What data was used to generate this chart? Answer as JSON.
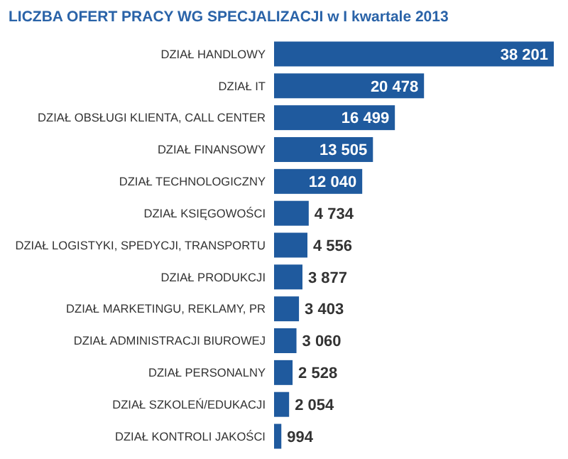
{
  "chart_data": {
    "type": "bar",
    "orientation": "horizontal",
    "title": "LICZBA OFERT PRACY WG SPECJALIZACJI w I kwartale 2013",
    "categories": [
      "DZIAŁ HANDLOWY",
      "DZIAŁ IT",
      "DZIAŁ OBSŁUGI KLIENTA, CALL CENTER",
      "DZIAŁ FINANSOWY",
      "DZIAŁ TECHNOLOGICZNY",
      "DZIAŁ KSIĘGOWOŚCI",
      "DZIAŁ LOGISTYKI, SPEDYCJI, TRANSPORTU",
      "DZIAŁ PRODUKCJI",
      "DZIAŁ MARKETINGU, REKLAMY, PR",
      "DZIAŁ ADMINISTRACJI BIUROWEJ",
      "DZIAŁ PERSONALNY",
      "DZIAŁ SZKOLEŃ/EDUKACJI",
      "DZIAŁ KONTROLI JAKOŚCI"
    ],
    "values": [
      38201,
      20478,
      16499,
      13505,
      12040,
      4734,
      4556,
      3877,
      3403,
      3060,
      2528,
      2054,
      994
    ],
    "value_labels": [
      "38 201",
      "20 478",
      "16 499",
      "13 505",
      "12 040",
      "4 734",
      "4 556",
      "3 877",
      "3 403",
      "3 060",
      "2 528",
      "2 054",
      "994"
    ],
    "color": "#1f5a9e"
  }
}
